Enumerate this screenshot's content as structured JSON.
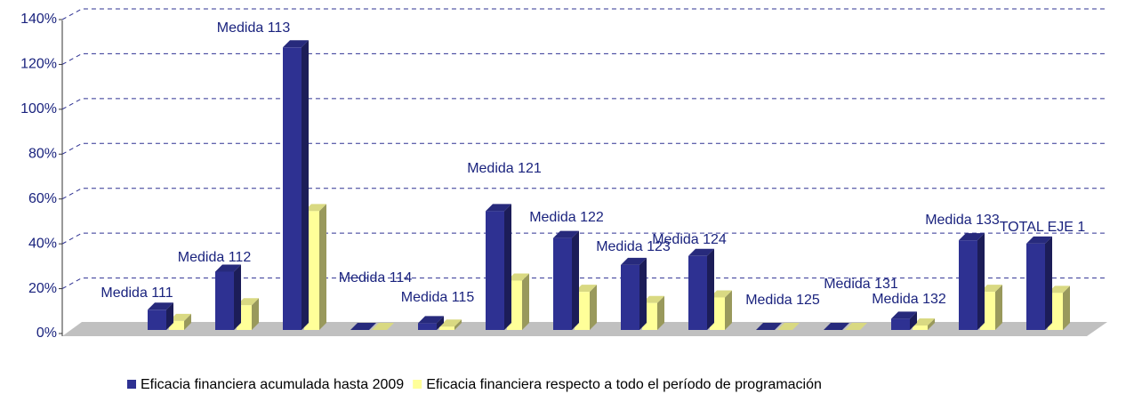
{
  "chart_data": {
    "type": "bar3d",
    "categories": [
      "Medida 111",
      "Medida 112",
      "Medida 113",
      "Medida 114",
      "Medida 115",
      "Medida 121",
      "Medida 122",
      "Medida 123",
      "Medida 124",
      "Medida 125",
      "Medida 131",
      "Medida 132",
      "Medida 133",
      "TOTAL EJE 1"
    ],
    "series": [
      {
        "name": "Eficacia financiera acumulada hasta 2009",
        "color": "#2e3192",
        "values": [
          9,
          26,
          126,
          0,
          3,
          53,
          41,
          29,
          33,
          0,
          0,
          5,
          40,
          38.5
        ]
      },
      {
        "name": "Eficacia financiera respecto a todo el período de programación",
        "color": "#ffff99",
        "values": [
          4,
          11,
          53,
          0,
          1.5,
          22,
          17,
          12,
          14.5,
          0,
          0,
          2,
          17,
          16.5
        ]
      }
    ],
    "ylim": [
      0,
      140
    ],
    "yticks": [
      {
        "value": 0,
        "label": "0%"
      },
      {
        "value": 20,
        "label": "20%"
      },
      {
        "value": 40,
        "label": "40%"
      },
      {
        "value": 60,
        "label": "60%"
      },
      {
        "value": 80,
        "label": "80%"
      },
      {
        "value": 100,
        "label": "100%"
      },
      {
        "value": 120,
        "label": "120%"
      },
      {
        "value": 140,
        "label": "140%"
      }
    ],
    "grid": true,
    "legend": "bottom"
  }
}
